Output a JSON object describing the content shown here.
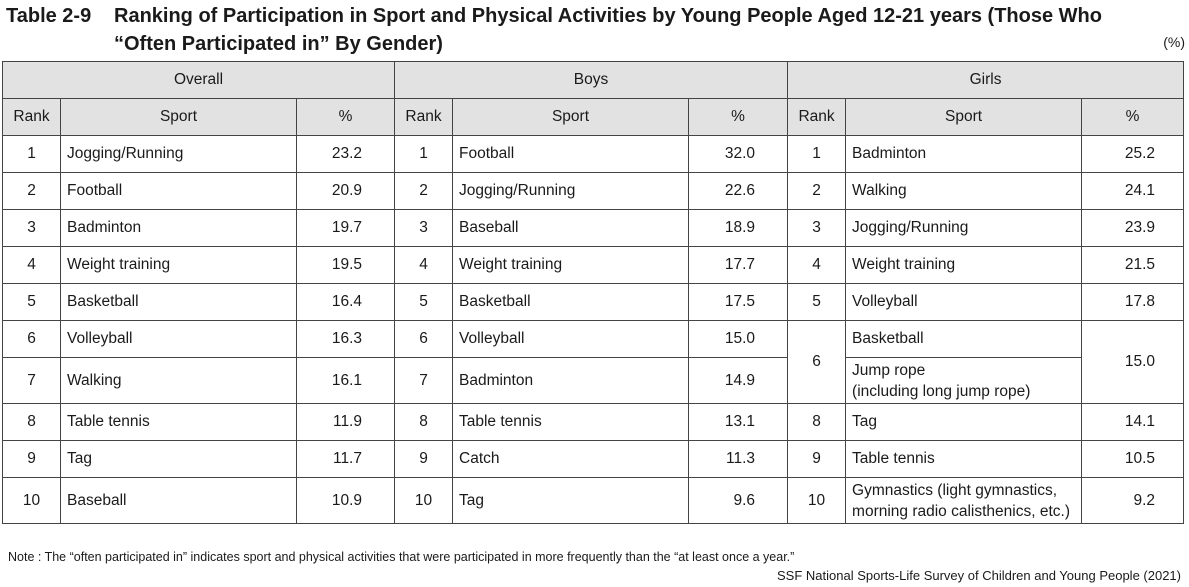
{
  "title": {
    "number": "Table 2-9",
    "line1": "Ranking of Participation in Sport and Physical Activities by Young People Aged 12-21 years (Those Who",
    "line2": "“Often Participated in” By Gender)"
  },
  "unit": "(%)",
  "groups": [
    "Overall",
    "Boys",
    "Girls"
  ],
  "columns": {
    "rank": "Rank",
    "sport": "Sport",
    "pct": "%"
  },
  "rows": [
    {
      "rank": "1",
      "overall": {
        "sport": "Jogging/Running",
        "pct": "23.2"
      },
      "boys": {
        "sport": "Football",
        "pct": "32.0"
      },
      "girls": {
        "sport": "Badminton",
        "pct": "25.2"
      }
    },
    {
      "rank": "2",
      "overall": {
        "sport": "Football",
        "pct": "20.9"
      },
      "boys": {
        "sport": "Jogging/Running",
        "pct": "22.6"
      },
      "girls": {
        "sport": "Walking",
        "pct": "24.1"
      }
    },
    {
      "rank": "3",
      "overall": {
        "sport": "Badminton",
        "pct": "19.7"
      },
      "boys": {
        "sport": "Baseball",
        "pct": "18.9"
      },
      "girls": {
        "sport": "Jogging/Running",
        "pct": "23.9"
      }
    },
    {
      "rank": "4",
      "overall": {
        "sport": "Weight training",
        "pct": "19.5"
      },
      "boys": {
        "sport": "Weight training",
        "pct": "17.7"
      },
      "girls": {
        "sport": "Weight training",
        "pct": "21.5"
      }
    },
    {
      "rank": "5",
      "overall": {
        "sport": "Basketball",
        "pct": "16.4"
      },
      "boys": {
        "sport": "Basketball",
        "pct": "17.5"
      },
      "girls": {
        "sport": "Volleyball",
        "pct": "17.8"
      }
    },
    {
      "rank": "6",
      "overall": {
        "sport": "Volleyball",
        "pct": "16.3"
      },
      "boys": {
        "sport": "Volleyball",
        "pct": "15.0"
      },
      "girls": {
        "rank": "6",
        "sport_a": "Basketball",
        "sport_b_line1": "Jump rope",
        "sport_b_line2": "(including long jump rope)",
        "pct": "15.0"
      }
    },
    {
      "rank": "7",
      "overall": {
        "sport": "Walking",
        "pct": "16.1"
      },
      "boys": {
        "sport": "Badminton",
        "pct": "14.9"
      }
    },
    {
      "rank": "8",
      "overall": {
        "sport": "Table tennis",
        "pct": "11.9"
      },
      "boys": {
        "sport": "Table tennis",
        "pct": "13.1"
      },
      "girls": {
        "sport": "Tag",
        "pct": "14.1"
      }
    },
    {
      "rank": "9",
      "overall": {
        "sport": "Tag",
        "pct": "11.7"
      },
      "boys": {
        "sport": "Catch",
        "pct": "11.3"
      },
      "girls": {
        "sport": "Table tennis",
        "pct": "10.5"
      }
    },
    {
      "rank": "10",
      "overall": {
        "sport": "Baseball",
        "pct": "10.9"
      },
      "boys": {
        "sport": "Tag",
        "pct": "9.6"
      },
      "girls": {
        "sport_line1": "Gymnastics (light gymnastics,",
        "sport_line2": "morning radio calisthenics, etc.)",
        "pct": "9.2"
      }
    }
  ],
  "note": "Note : The “often participated in” indicates sport and physical activities that were participated in more frequently than the “at least once a year.”",
  "source": "SSF National Sports-Life Survey of Children and Young People (2021)"
}
